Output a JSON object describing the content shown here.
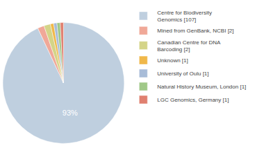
{
  "chart_data": {
    "type": "pie",
    "labels": [
      "Centre for Biodiversity\nGenomics [107]",
      "Mined from GenBank, NCBI [2]",
      "Canadian Centre for DNA\nBarcoding [2]",
      "Unknown [1]",
      "University of Oulu [1]",
      "Natural History Museum, London [1]",
      "LGC Genomics, Germany [1]"
    ],
    "values": [
      107,
      2,
      2,
      1,
      1,
      1,
      1
    ],
    "colors": [
      "#bfcfdf",
      "#f0a898",
      "#d4d488",
      "#f0b84a",
      "#a8bcd8",
      "#a0c888",
      "#e08070"
    ],
    "annotations": [
      "93%"
    ],
    "legend": "upper right"
  }
}
